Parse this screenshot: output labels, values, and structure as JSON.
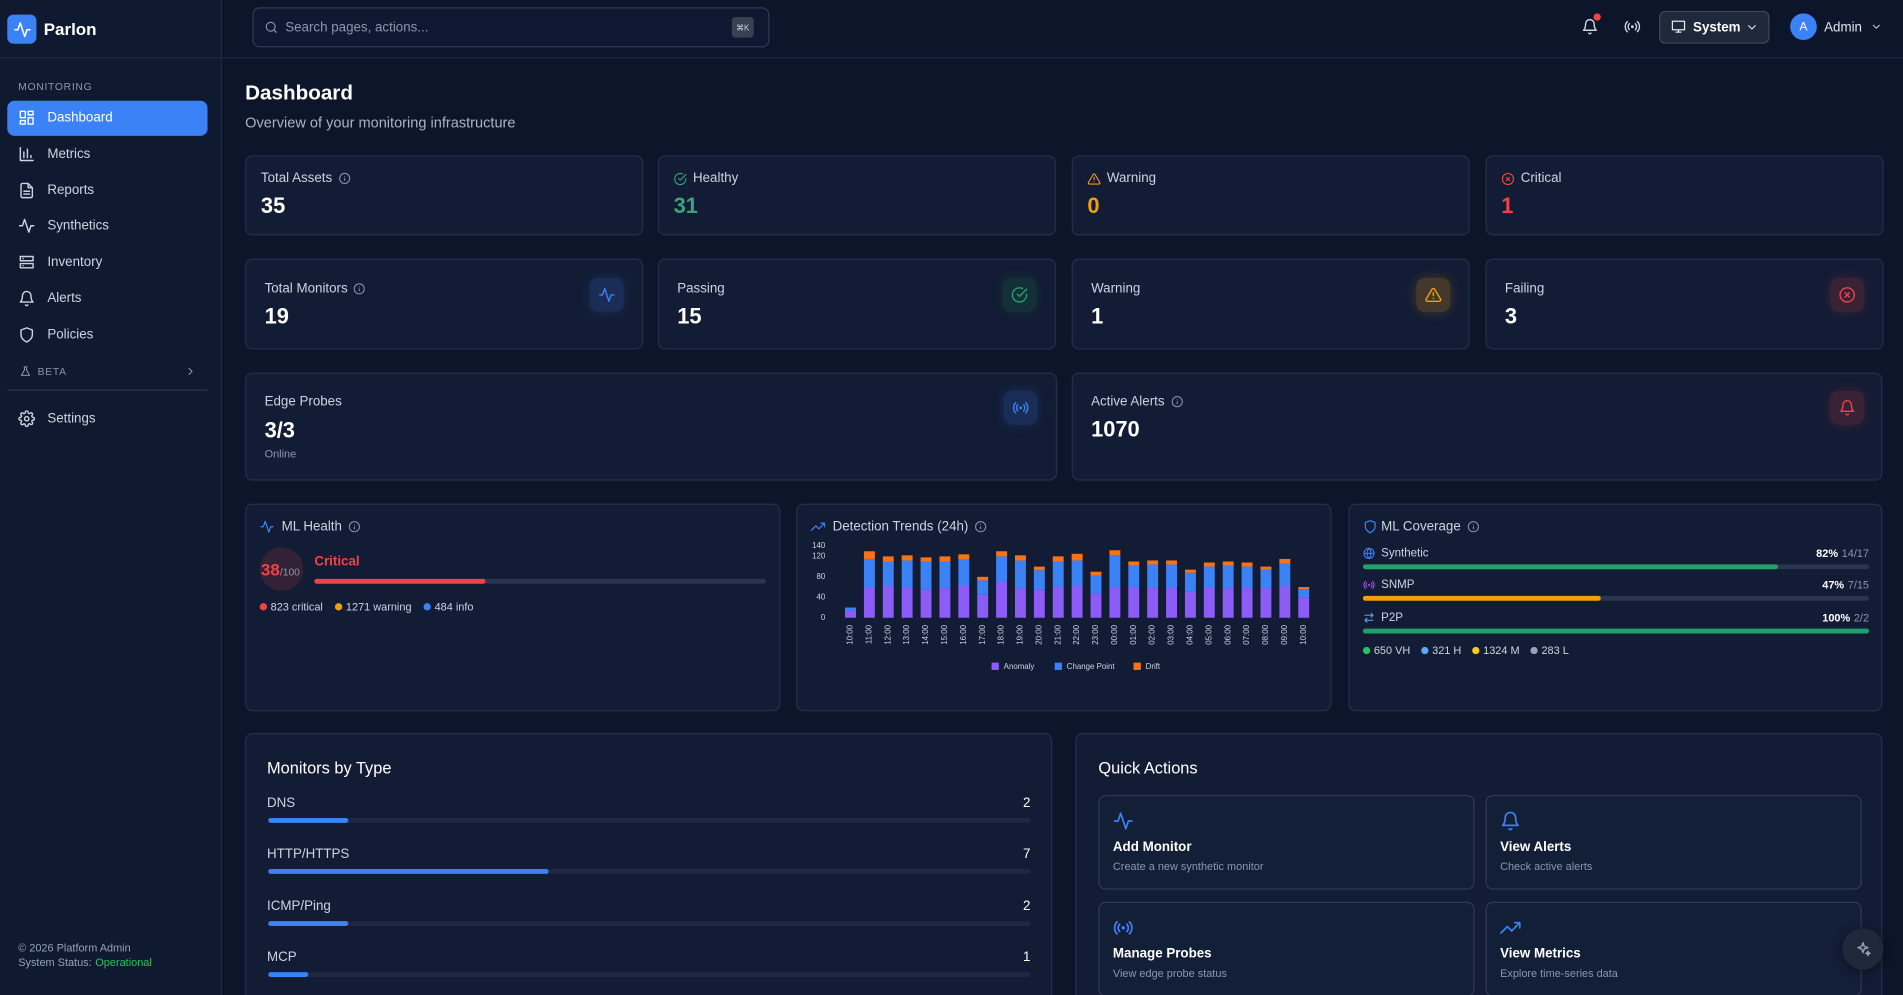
{
  "sidebar": {
    "brand": "Parlon",
    "section": "MONITORING",
    "nav": [
      "Dashboard",
      "Metrics",
      "Reports",
      "Synthetics",
      "Inventory",
      "Alerts",
      "Policies"
    ],
    "beta": "BETA",
    "settings": "Settings",
    "footer": {
      "copyright": "© 2026 Platform Admin",
      "status_label": "System Status:",
      "status": "Operational"
    }
  },
  "header": {
    "search_placeholder": "Search pages, actions...",
    "shortcut": "⌘K",
    "theme": "System",
    "avatar": "A",
    "user": "Admin"
  },
  "page": {
    "title": "Dashboard",
    "subtitle": "Overview of your monitoring infrastructure"
  },
  "asset_stats": [
    {
      "label": "Total Assets",
      "value": 35
    },
    {
      "label": "Healthy",
      "value": 31
    },
    {
      "label": "Warning",
      "value": 0
    },
    {
      "label": "Critical",
      "value": 1
    }
  ],
  "monitor_stats": [
    {
      "label": "Total Monitors",
      "value": 19
    },
    {
      "label": "Passing",
      "value": 15
    },
    {
      "label": "Warning",
      "value": 1
    },
    {
      "label": "Failing",
      "value": 3
    }
  ],
  "edge_probes": {
    "label": "Edge Probes",
    "value": "3/3",
    "note": "Online"
  },
  "active_alerts": {
    "label": "Active Alerts",
    "value": 1070
  },
  "ml_health": {
    "title": "ML Health",
    "score": 38,
    "max": {
      "value": 100,
      "label": "/100"
    },
    "status": "Critical",
    "legend": [
      "823 critical",
      "1271 warning",
      "484 info"
    ]
  },
  "chart_data": {
    "type": "bar",
    "stacked": true,
    "title": "Detection Trends (24h)",
    "categories": [
      "10:00",
      "11:00",
      "12:00",
      "13:00",
      "14:00",
      "15:00",
      "16:00",
      "17:00",
      "18:00",
      "19:00",
      "20:00",
      "21:00",
      "22:00",
      "23:00",
      "00:00",
      "01:00",
      "02:00",
      "03:00",
      "04:00",
      "05:00",
      "06:00",
      "07:00",
      "08:00",
      "09:00",
      "10:00"
    ],
    "series": [
      {
        "name": "Anomaly",
        "color": "#8b5cf6",
        "values": [
          14,
          60,
          62,
          60,
          55,
          58,
          64,
          45,
          72,
          58,
          55,
          60,
          62,
          48,
          60,
          60,
          58,
          60,
          52,
          60,
          58,
          60,
          58,
          62,
          40
        ]
      },
      {
        "name": "Change Point",
        "color": "#3b82f6",
        "values": [
          6,
          55,
          48,
          52,
          55,
          52,
          50,
          28,
          48,
          54,
          38,
          50,
          50,
          34,
          62,
          42,
          46,
          44,
          36,
          40,
          44,
          40,
          36,
          44,
          16
        ]
      },
      {
        "name": "Drift",
        "color": "#f97316",
        "values": [
          0,
          15,
          10,
          10,
          8,
          10,
          10,
          7,
          10,
          10,
          7,
          10,
          13,
          8,
          10,
          8,
          8,
          8,
          6,
          8,
          8,
          8,
          6,
          9,
          4
        ]
      }
    ],
    "ylim": [
      0,
      140
    ],
    "yticks": [
      0,
      40,
      80,
      120,
      140
    ]
  },
  "ml_coverage": {
    "title": "ML Coverage",
    "items": [
      {
        "name": "Synthetic",
        "value": 82,
        "value_label": "82%",
        "count": "14/17",
        "color": "#22a06b"
      },
      {
        "name": "SNMP",
        "value": 47,
        "value_label": "47%",
        "count": "7/15",
        "color": "#f59e0b"
      },
      {
        "name": "P2P",
        "value": 100,
        "value_label": "100%",
        "count": "2/2",
        "color": "#22a06b"
      }
    ],
    "legend": [
      {
        "label": "650 VH",
        "color": "#22c55e"
      },
      {
        "label": "321 H",
        "color": "#60a5fa"
      },
      {
        "label": "1324 M",
        "color": "#facc15"
      },
      {
        "label": "283 L",
        "color": "#94a3b8"
      }
    ]
  },
  "monitors_by_type": {
    "title": "Monitors by Type",
    "xlim": [
      0,
      19
    ],
    "color": "#3b82f6",
    "items": [
      {
        "name": "DNS",
        "value": 2
      },
      {
        "name": "HTTP/HTTPS",
        "value": 7
      },
      {
        "name": "ICMP/Ping",
        "value": 2
      },
      {
        "name": "MCP",
        "value": 1
      }
    ]
  },
  "quick_actions": {
    "title": "Quick Actions",
    "items": [
      {
        "title": "Add Monitor",
        "description": "Create a new synthetic monitor"
      },
      {
        "title": "View Alerts",
        "description": "Check active alerts"
      },
      {
        "title": "Manage Probes",
        "description": "View edge probe status"
      },
      {
        "title": "View Metrics",
        "description": "Explore time-series data"
      }
    ]
  }
}
